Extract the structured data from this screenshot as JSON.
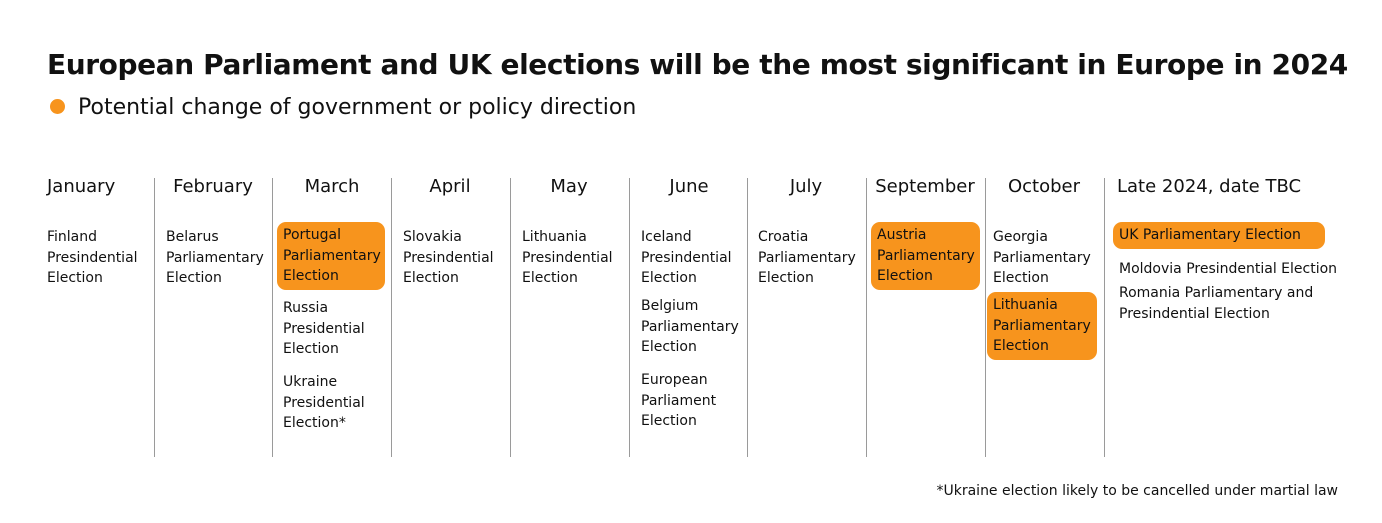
{
  "title": "European Parliament and UK elections will be the most significant in Europe in 2024",
  "legend": {
    "label": "Potential change of government or policy direction",
    "color": "#f7941d"
  },
  "highlight_color": "#f7941d",
  "columns": [
    {
      "month": "January",
      "events": [
        {
          "name": "Finland\nPresindential\nElection",
          "highlighted": false
        }
      ]
    },
    {
      "month": "February",
      "events": [
        {
          "name": "Belarus\nParliamentary\nElection",
          "highlighted": false
        }
      ]
    },
    {
      "month": "March",
      "events": [
        {
          "name": "Portugal\nParliamentary\nElection",
          "highlighted": true
        },
        {
          "name": "Russia\nPresidential\nElection",
          "highlighted": false
        },
        {
          "name": "Ukraine\nPresidential\nElection*",
          "highlighted": false
        }
      ]
    },
    {
      "month": "April",
      "events": [
        {
          "name": "Slovakia\nPresindential\nElection",
          "highlighted": false
        }
      ]
    },
    {
      "month": "May",
      "events": [
        {
          "name": "Lithuania\nPresindential\nElection",
          "highlighted": false
        }
      ]
    },
    {
      "month": "June",
      "events": [
        {
          "name": "Iceland\nPresindential\nElection",
          "highlighted": false
        },
        {
          "name": "Belgium\nParliamentary\nElection",
          "highlighted": false
        },
        {
          "name": "European\nParliament\nElection",
          "highlighted": false
        }
      ]
    },
    {
      "month": "July",
      "events": [
        {
          "name": "Croatia\nParliamentary\nElection",
          "highlighted": false
        }
      ]
    },
    {
      "month": "September",
      "events": [
        {
          "name": "Austria\nParliamentary\nElection",
          "highlighted": true
        }
      ]
    },
    {
      "month": "October",
      "events": [
        {
          "name": "Georgia\nParliamentary\nElection",
          "highlighted": false
        },
        {
          "name": "Lithuania\nParliamentary\nElection",
          "highlighted": true
        }
      ]
    },
    {
      "month": "Late 2024, date TBC",
      "events": [
        {
          "name": "UK Parliamentary Election",
          "highlighted": true
        },
        {
          "name": "Moldovia Presindential Election",
          "highlighted": false
        },
        {
          "name": "Romania Parliamentary and\nPresindential Election",
          "highlighted": false
        }
      ]
    }
  ],
  "footnote": "*Ukraine election likely to be cancelled under martial law"
}
